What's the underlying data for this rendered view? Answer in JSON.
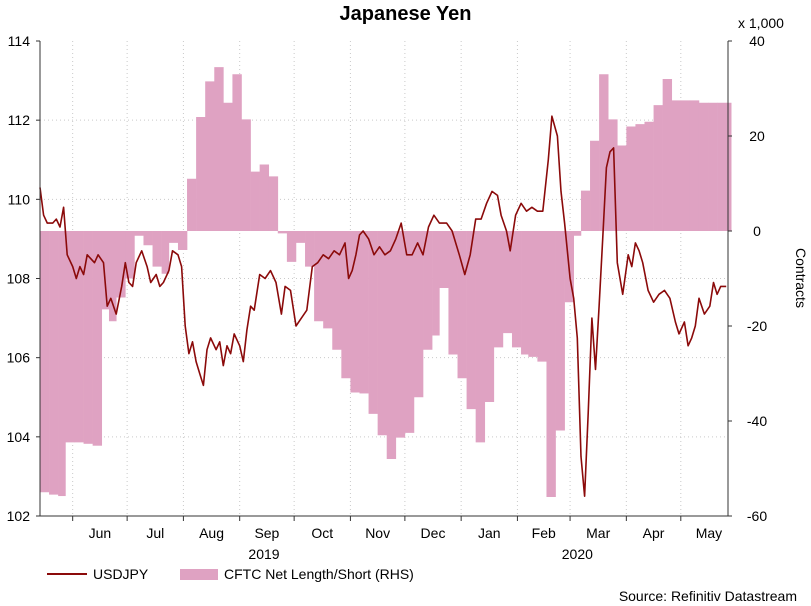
{
  "chart_data": {
    "type": "line",
    "title": "Japanese Yen",
    "x_tick_labels": [
      "Jun",
      "Jul",
      "Aug",
      "Sep",
      "Oct",
      "Nov",
      "Dec",
      "Jan",
      "Feb",
      "Mar",
      "Apr",
      "May"
    ],
    "year_labels": [
      "2019",
      "2020"
    ],
    "y_left": {
      "ylim": [
        102,
        114
      ],
      "ticks": [
        102,
        104,
        106,
        108,
        110,
        112,
        114
      ]
    },
    "y_right": {
      "label": "Contracts",
      "unit": "x 1,000",
      "ylim": [
        -60,
        40
      ],
      "ticks": [
        -60,
        -40,
        -20,
        0,
        20,
        40
      ]
    },
    "grid": true,
    "legend_position": "bottom-left",
    "series": [
      {
        "name": "USDJPY",
        "axis": "left",
        "kind": "line",
        "color": "#8b0a0a",
        "points": [
          [
            "2019-05-14",
            110.3
          ],
          [
            "2019-05-16",
            109.6
          ],
          [
            "2019-05-18",
            109.4
          ],
          [
            "2019-05-21",
            109.4
          ],
          [
            "2019-05-23",
            109.5
          ],
          [
            "2019-05-25",
            109.3
          ],
          [
            "2019-05-27",
            109.8
          ],
          [
            "2019-05-29",
            108.6
          ],
          [
            "2019-06-01",
            108.3
          ],
          [
            "2019-06-03",
            108.0
          ],
          [
            "2019-06-05",
            108.3
          ],
          [
            "2019-06-07",
            108.1
          ],
          [
            "2019-06-09",
            108.6
          ],
          [
            "2019-06-11",
            108.5
          ],
          [
            "2019-06-13",
            108.4
          ],
          [
            "2019-06-15",
            108.6
          ],
          [
            "2019-06-18",
            108.4
          ],
          [
            "2019-06-20",
            107.3
          ],
          [
            "2019-06-22",
            107.5
          ],
          [
            "2019-06-25",
            107.1
          ],
          [
            "2019-06-28",
            107.8
          ],
          [
            "2019-06-30",
            108.4
          ],
          [
            "2019-07-02",
            107.9
          ],
          [
            "2019-07-04",
            107.8
          ],
          [
            "2019-07-06",
            108.4
          ],
          [
            "2019-07-09",
            108.7
          ],
          [
            "2019-07-12",
            108.3
          ],
          [
            "2019-07-14",
            107.9
          ],
          [
            "2019-07-17",
            108.1
          ],
          [
            "2019-07-19",
            107.8
          ],
          [
            "2019-07-21",
            107.9
          ],
          [
            "2019-07-24",
            108.2
          ],
          [
            "2019-07-26",
            108.7
          ],
          [
            "2019-07-29",
            108.6
          ],
          [
            "2019-07-31",
            108.3
          ],
          [
            "2019-08-02",
            106.8
          ],
          [
            "2019-08-04",
            106.1
          ],
          [
            "2019-08-06",
            106.4
          ],
          [
            "2019-08-08",
            105.9
          ],
          [
            "2019-08-10",
            105.6
          ],
          [
            "2019-08-12",
            105.3
          ],
          [
            "2019-08-14",
            106.2
          ],
          [
            "2019-08-16",
            106.5
          ],
          [
            "2019-08-19",
            106.2
          ],
          [
            "2019-08-21",
            106.4
          ],
          [
            "2019-08-23",
            105.8
          ],
          [
            "2019-08-25",
            106.3
          ],
          [
            "2019-08-27",
            106.1
          ],
          [
            "2019-08-29",
            106.6
          ],
          [
            "2019-09-01",
            106.3
          ],
          [
            "2019-09-03",
            105.9
          ],
          [
            "2019-09-05",
            106.7
          ],
          [
            "2019-09-07",
            107.3
          ],
          [
            "2019-09-09",
            107.2
          ],
          [
            "2019-09-12",
            108.1
          ],
          [
            "2019-09-15",
            108.0
          ],
          [
            "2019-09-18",
            108.2
          ],
          [
            "2019-09-21",
            107.9
          ],
          [
            "2019-09-24",
            107.1
          ],
          [
            "2019-09-26",
            107.8
          ],
          [
            "2019-09-29",
            107.7
          ],
          [
            "2019-10-02",
            106.8
          ],
          [
            "2019-10-05",
            107.0
          ],
          [
            "2019-10-08",
            107.2
          ],
          [
            "2019-10-11",
            108.3
          ],
          [
            "2019-10-14",
            108.4
          ],
          [
            "2019-10-17",
            108.6
          ],
          [
            "2019-10-20",
            108.5
          ],
          [
            "2019-10-23",
            108.7
          ],
          [
            "2019-10-26",
            108.6
          ],
          [
            "2019-10-29",
            108.9
          ],
          [
            "2019-10-31",
            108.0
          ],
          [
            "2019-11-02",
            108.2
          ],
          [
            "2019-11-04",
            108.6
          ],
          [
            "2019-11-06",
            109.1
          ],
          [
            "2019-11-08",
            109.2
          ],
          [
            "2019-11-11",
            109.0
          ],
          [
            "2019-11-14",
            108.6
          ],
          [
            "2019-11-17",
            108.8
          ],
          [
            "2019-11-20",
            108.6
          ],
          [
            "2019-11-23",
            108.7
          ],
          [
            "2019-11-26",
            109.0
          ],
          [
            "2019-11-29",
            109.4
          ],
          [
            "2019-12-02",
            108.6
          ],
          [
            "2019-12-05",
            108.6
          ],
          [
            "2019-12-08",
            108.9
          ],
          [
            "2019-12-11",
            108.6
          ],
          [
            "2019-12-14",
            109.3
          ],
          [
            "2019-12-17",
            109.6
          ],
          [
            "2019-12-20",
            109.4
          ],
          [
            "2019-12-24",
            109.4
          ],
          [
            "2019-12-27",
            109.2
          ],
          [
            "2019-12-31",
            108.6
          ],
          [
            "2020-01-03",
            108.1
          ],
          [
            "2020-01-06",
            108.6
          ],
          [
            "2020-01-09",
            109.5
          ],
          [
            "2020-01-12",
            109.5
          ],
          [
            "2020-01-15",
            109.9
          ],
          [
            "2020-01-18",
            110.2
          ],
          [
            "2020-01-21",
            110.1
          ],
          [
            "2020-01-23",
            109.6
          ],
          [
            "2020-01-26",
            109.2
          ],
          [
            "2020-01-28",
            108.7
          ],
          [
            "2020-01-31",
            109.6
          ],
          [
            "2020-02-03",
            109.9
          ],
          [
            "2020-02-06",
            109.7
          ],
          [
            "2020-02-09",
            109.8
          ],
          [
            "2020-02-12",
            109.7
          ],
          [
            "2020-02-15",
            109.7
          ],
          [
            "2020-02-18",
            111.0
          ],
          [
            "2020-02-20",
            112.1
          ],
          [
            "2020-02-23",
            111.6
          ],
          [
            "2020-02-25",
            110.2
          ],
          [
            "2020-02-27",
            109.4
          ],
          [
            "2020-03-01",
            108.0
          ],
          [
            "2020-03-03",
            107.5
          ],
          [
            "2020-03-05",
            106.5
          ],
          [
            "2020-03-07",
            103.5
          ],
          [
            "2020-03-09",
            102.5
          ],
          [
            "2020-03-11",
            104.6
          ],
          [
            "2020-03-13",
            107.0
          ],
          [
            "2020-03-15",
            105.7
          ],
          [
            "2020-03-17",
            107.3
          ],
          [
            "2020-03-19",
            109.0
          ],
          [
            "2020-03-21",
            110.8
          ],
          [
            "2020-03-23",
            111.2
          ],
          [
            "2020-03-25",
            111.3
          ],
          [
            "2020-03-27",
            108.4
          ],
          [
            "2020-03-30",
            107.6
          ],
          [
            "2020-04-02",
            108.6
          ],
          [
            "2020-04-04",
            108.3
          ],
          [
            "2020-04-06",
            108.9
          ],
          [
            "2020-04-08",
            108.7
          ],
          [
            "2020-04-10",
            108.4
          ],
          [
            "2020-04-13",
            107.7
          ],
          [
            "2020-04-16",
            107.4
          ],
          [
            "2020-04-19",
            107.6
          ],
          [
            "2020-04-22",
            107.7
          ],
          [
            "2020-04-25",
            107.5
          ],
          [
            "2020-04-28",
            106.9
          ],
          [
            "2020-04-30",
            106.6
          ],
          [
            "2020-05-03",
            106.9
          ],
          [
            "2020-05-05",
            106.3
          ],
          [
            "2020-05-07",
            106.5
          ],
          [
            "2020-05-09",
            106.8
          ],
          [
            "2020-05-11",
            107.5
          ],
          [
            "2020-05-14",
            107.1
          ],
          [
            "2020-05-17",
            107.3
          ],
          [
            "2020-05-19",
            107.9
          ],
          [
            "2020-05-21",
            107.6
          ],
          [
            "2020-05-23",
            107.8
          ],
          [
            "2020-05-26",
            107.8
          ]
        ]
      },
      {
        "name": "CFTC Net Length/Short (RHS)",
        "axis": "right",
        "kind": "area",
        "color": "#dfa2c2",
        "points": [
          [
            "2019-05-14",
            -55.0
          ],
          [
            "2019-05-19",
            -55.5
          ],
          [
            "2019-05-24",
            -55.8
          ],
          [
            "2019-05-28",
            -44.5
          ],
          [
            "2019-06-02",
            -44.5
          ],
          [
            "2019-06-07",
            -44.8
          ],
          [
            "2019-06-12",
            -45.2
          ],
          [
            "2019-06-17",
            -16.5
          ],
          [
            "2019-06-21",
            -19.0
          ],
          [
            "2019-06-25",
            -14.0
          ],
          [
            "2019-06-30",
            -10.0
          ],
          [
            "2019-07-05",
            -1.0
          ],
          [
            "2019-07-10",
            -3.0
          ],
          [
            "2019-07-15",
            -7.5
          ],
          [
            "2019-07-20",
            -9.0
          ],
          [
            "2019-07-24",
            -2.5
          ],
          [
            "2019-07-29",
            -4.0
          ],
          [
            "2019-08-03",
            11.0
          ],
          [
            "2019-08-08",
            24.0
          ],
          [
            "2019-08-13",
            31.5
          ],
          [
            "2019-08-18",
            34.5
          ],
          [
            "2019-08-23",
            27.0
          ],
          [
            "2019-08-28",
            33.0
          ],
          [
            "2019-09-02",
            23.5
          ],
          [
            "2019-09-07",
            12.5
          ],
          [
            "2019-09-12",
            14.0
          ],
          [
            "2019-09-17",
            11.5
          ],
          [
            "2019-09-22",
            -0.5
          ],
          [
            "2019-09-27",
            -6.5
          ],
          [
            "2019-10-02",
            -2.5
          ],
          [
            "2019-10-07",
            -7.5
          ],
          [
            "2019-10-12",
            -19.0
          ],
          [
            "2019-10-17",
            -20.5
          ],
          [
            "2019-10-22",
            -25.0
          ],
          [
            "2019-10-27",
            -31.0
          ],
          [
            "2019-11-01",
            -34.0
          ],
          [
            "2019-11-06",
            -34.2
          ],
          [
            "2019-11-11",
            -38.5
          ],
          [
            "2019-11-16",
            -43.0
          ],
          [
            "2019-11-21",
            -48.0
          ],
          [
            "2019-11-26",
            -43.5
          ],
          [
            "2019-12-01",
            -42.5
          ],
          [
            "2019-12-06",
            -35.0
          ],
          [
            "2019-12-11",
            -25.0
          ],
          [
            "2019-12-16",
            -22.0
          ],
          [
            "2019-12-20",
            -12.0
          ],
          [
            "2019-12-25",
            -26.0
          ],
          [
            "2019-12-30",
            -31.0
          ],
          [
            "2020-01-04",
            -37.5
          ],
          [
            "2020-01-09",
            -44.5
          ],
          [
            "2020-01-14",
            -36.0
          ],
          [
            "2020-01-19",
            -24.5
          ],
          [
            "2020-01-24",
            -21.5
          ],
          [
            "2020-01-29",
            -24.5
          ],
          [
            "2020-02-03",
            -26.0
          ],
          [
            "2020-02-07",
            -26.5
          ],
          [
            "2020-02-12",
            -27.5
          ],
          [
            "2020-02-17",
            -56.0
          ],
          [
            "2020-02-22",
            -42.0
          ],
          [
            "2020-02-27",
            -15.0
          ],
          [
            "2020-03-03",
            -1.0
          ],
          [
            "2020-03-07",
            8.5
          ],
          [
            "2020-03-12",
            19.0
          ],
          [
            "2020-03-17",
            33.0
          ],
          [
            "2020-03-22",
            23.5
          ],
          [
            "2020-03-27",
            18.0
          ],
          [
            "2020-04-01",
            22.0
          ],
          [
            "2020-04-06",
            22.5
          ],
          [
            "2020-04-11",
            23.0
          ],
          [
            "2020-04-16",
            26.5
          ],
          [
            "2020-04-21",
            32.0
          ],
          [
            "2020-04-26",
            27.5
          ],
          [
            "2020-05-01",
            27.5
          ],
          [
            "2020-05-06",
            27.5
          ],
          [
            "2020-05-11",
            27.0
          ],
          [
            "2020-05-16",
            27.0
          ],
          [
            "2020-05-21",
            27.0
          ],
          [
            "2020-05-26",
            27.0
          ]
        ]
      }
    ],
    "source_note": "Source: Refinitiv Datastream"
  }
}
